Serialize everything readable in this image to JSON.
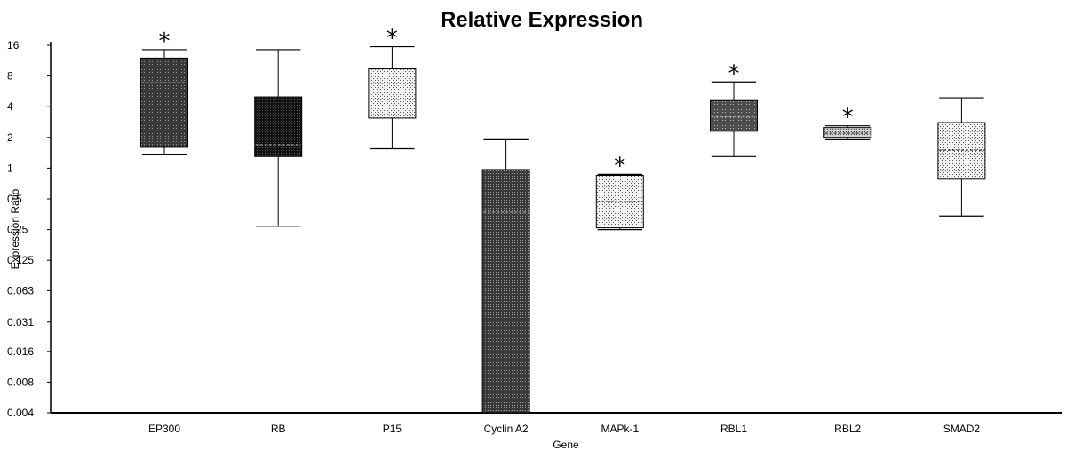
{
  "chart_data": {
    "type": "box",
    "title": "Relative Expression",
    "xlabel": "Gene",
    "ylabel": "Expression Ratio",
    "yscale": "log2",
    "ylim": [
      0.004,
      16
    ],
    "yticks": [
      16,
      8,
      4,
      2,
      1,
      0.5,
      0.25,
      0.125,
      0.063,
      0.031,
      0.016,
      0.008,
      0.004
    ],
    "ytick_labels": [
      "16",
      "8",
      "4",
      "2",
      "1",
      "0.5",
      "0.25",
      "0.125",
      "0.063",
      "0.031",
      "0.016",
      "0.008",
      "0.004"
    ],
    "categories": [
      "EP300",
      "RB",
      "P15",
      "Cyclin A2",
      "MAPk-1",
      "RBL1",
      "RBL2",
      "SMAD2"
    ],
    "boxes": [
      {
        "whisker_low": 1.35,
        "q1": 1.6,
        "median": 6.9,
        "q3": 12.0,
        "whisker_high": 14.5,
        "fill": "dark",
        "significant": true,
        "marker": "*"
      },
      {
        "whisker_low": 0.27,
        "q1": 1.3,
        "median": 1.7,
        "q3": 5.0,
        "whisker_high": 14.5,
        "fill": "black",
        "significant": false,
        "marker": ""
      },
      {
        "whisker_low": 1.55,
        "q1": 3.1,
        "median": 5.7,
        "q3": 9.4,
        "whisker_high": 15.5,
        "fill": "light",
        "significant": true,
        "marker": "*"
      },
      {
        "whisker_low": 0.004,
        "q1": 0.004,
        "median": 0.37,
        "q3": 0.97,
        "whisker_high": 1.9,
        "fill": "dark",
        "significant": false,
        "marker": ""
      },
      {
        "whisker_low": 0.25,
        "q1": 0.26,
        "median": 0.47,
        "q3": 0.85,
        "whisker_high": 0.87,
        "fill": "light",
        "significant": true,
        "marker": "*"
      },
      {
        "whisker_low": 1.3,
        "q1": 2.3,
        "median": 3.2,
        "q3": 4.6,
        "whisker_high": 7.0,
        "fill": "medium",
        "significant": true,
        "marker": "*"
      },
      {
        "whisker_low": 1.9,
        "q1": 2.0,
        "median": 2.2,
        "q3": 2.5,
        "whisker_high": 2.6,
        "fill": "medium-light",
        "significant": true,
        "marker": "*"
      },
      {
        "whisker_low": 0.34,
        "q1": 0.78,
        "median": 1.5,
        "q3": 2.8,
        "whisker_high": 4.9,
        "fill": "light",
        "significant": false,
        "marker": ""
      }
    ],
    "grid": false,
    "legend": "none",
    "colors": {
      "dark": "#3a3a3a",
      "black": "#111111",
      "light": "#e2e2e2",
      "medium": "#555555",
      "medium-light": "#bbbbbb",
      "stroke": "#000000"
    }
  }
}
